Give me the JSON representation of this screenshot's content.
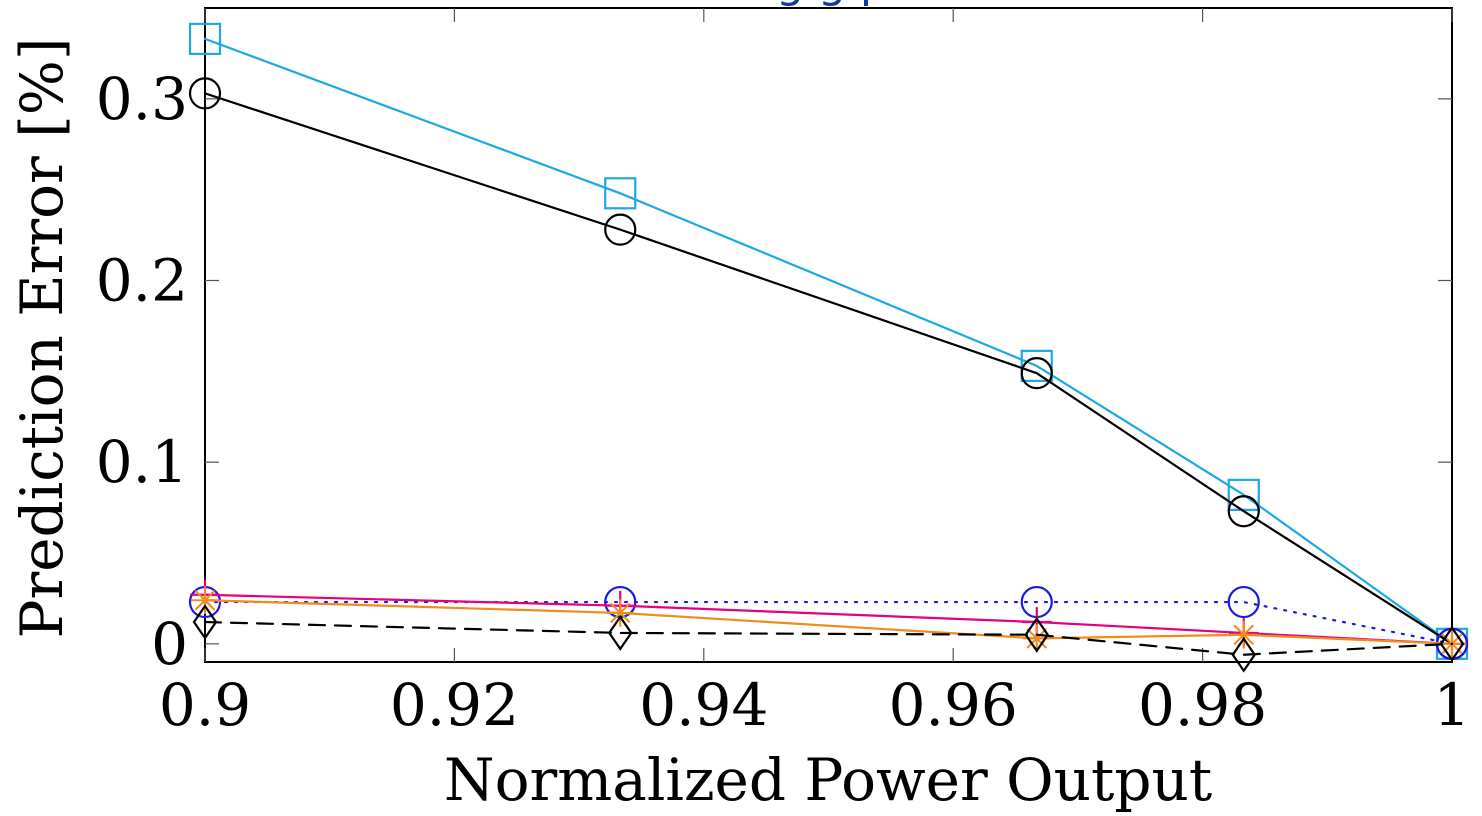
{
  "chart_data": {
    "type": "line",
    "title": "",
    "xlabel": "Normalized Power Output",
    "ylabel": "Prediction Error [%]",
    "xlim": [
      0.9,
      1.0
    ],
    "ylim": [
      -0.01,
      0.35
    ],
    "grid": false,
    "x_ticks": [
      0.9,
      0.92,
      0.94,
      0.96,
      0.98,
      1.0
    ],
    "x_tick_labels": [
      "0.9",
      "0.92",
      "0.94",
      "0.96",
      "0.98",
      "1"
    ],
    "y_ticks": [
      0.0,
      0.1,
      0.2,
      0.3
    ],
    "y_tick_labels": [
      "0",
      "0.1",
      "0.2",
      "0.3"
    ],
    "top_fragment": "g    g p",
    "series": [
      {
        "color": "#1ca9e1",
        "marker": "square",
        "line": "solid",
        "x": [
          0.9,
          0.9333,
          0.9667,
          0.9833,
          1.0
        ],
        "y": [
          0.333,
          0.248,
          0.153,
          0.082,
          0.0
        ]
      },
      {
        "color": "#000000",
        "marker": "circle",
        "line": "solid",
        "x": [
          0.9,
          0.9333,
          0.9667,
          0.9833,
          1.0
        ],
        "y": [
          0.303,
          0.228,
          0.149,
          0.073,
          0.0
        ]
      },
      {
        "color": "#1a1ae6",
        "marker": "circle",
        "line": "dotted",
        "x": [
          0.9,
          0.9333,
          0.9667,
          0.9833,
          1.0
        ],
        "y": [
          0.023,
          0.023,
          0.023,
          0.023,
          0.0
        ]
      },
      {
        "color": "#e6007e",
        "marker": "plus",
        "line": "solid",
        "x": [
          0.9,
          0.9333,
          0.9667,
          0.9833,
          1.0
        ],
        "y": [
          0.027,
          0.021,
          0.012,
          0.006,
          0.0
        ]
      },
      {
        "color": "#f28a1c",
        "marker": "asterisk",
        "line": "solid",
        "x": [
          0.9,
          0.9333,
          0.9667,
          0.9833,
          1.0
        ],
        "y": [
          0.024,
          0.017,
          0.003,
          0.005,
          0.0
        ]
      },
      {
        "color": "#000000",
        "marker": "diamond",
        "line": "dashed",
        "x": [
          0.9,
          0.9333,
          0.9667,
          0.9833,
          1.0
        ],
        "y": [
          0.012,
          0.006,
          0.005,
          -0.006,
          0.0
        ]
      }
    ]
  }
}
